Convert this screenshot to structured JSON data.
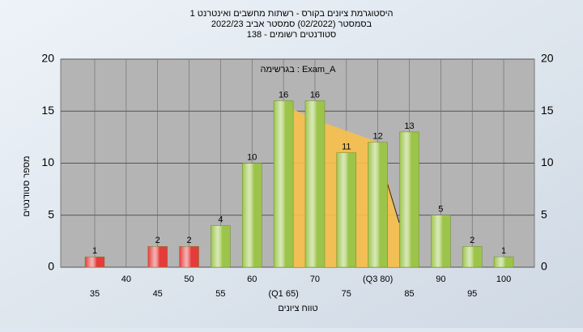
{
  "chart_data": {
    "type": "bar",
    "title_lines": [
      "היסטוגרמת ציונים בקורס - רשתות מחשבים ואינטרנט 1",
      "בסמסטר  (02/2022)  סמסטר אביב 2022/23",
      "סטודנטים רשומים - 138"
    ],
    "annotation": "בגרשימה : Exam_A",
    "y_label": "מספר סטודנטים",
    "x_label": "טווח ציונים",
    "categories": [
      "35",
      "40",
      "45",
      "50",
      "55",
      "60",
      "(Q1 65)",
      "70",
      "75",
      "(Q3 80)",
      "85",
      "90",
      "95",
      "100"
    ],
    "values": [
      1,
      0,
      2,
      2,
      4,
      10,
      16,
      16,
      11,
      12,
      13,
      5,
      2,
      1
    ],
    "colors": [
      "#e53b3b",
      "#e53b3b",
      "#e53b3b",
      "#e53b3b",
      "#9cc44a",
      "#9cc44a",
      "#9cc44a",
      "#9cc44a",
      "#9cc44a",
      "#9cc44a",
      "#9cc44a",
      "#9cc44a",
      "#9cc44a",
      "#9cc44a"
    ],
    "ylim": [
      0,
      20
    ],
    "yticks": [
      0,
      5,
      10,
      15,
      20
    ],
    "grid": true
  }
}
